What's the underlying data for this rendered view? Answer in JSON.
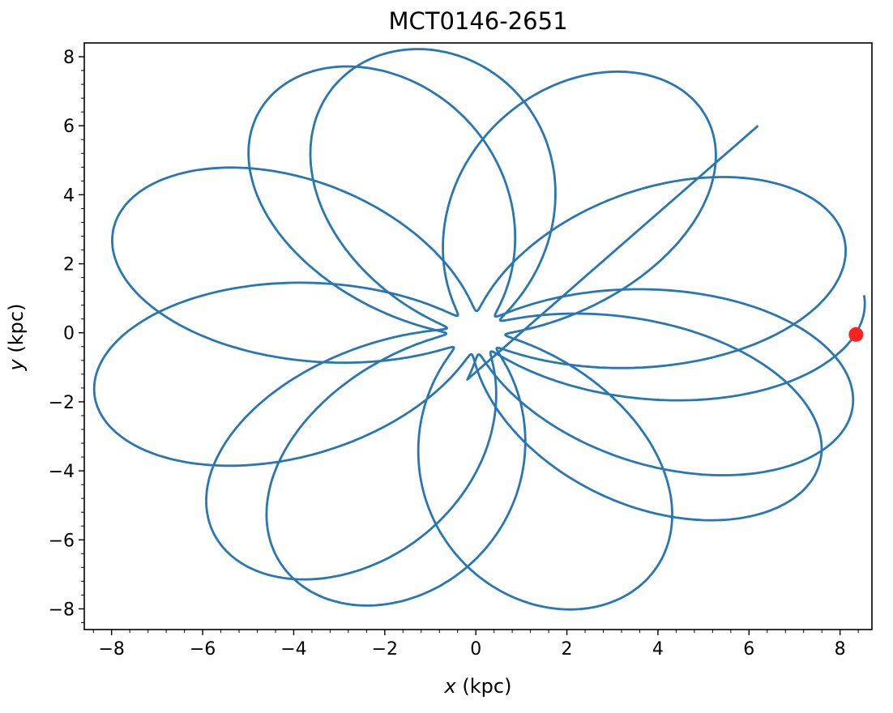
{
  "chart_data": {
    "type": "line",
    "title": "MCT0146-2651",
    "xlabel_var": "x",
    "xlabel_unit": " (kpc)",
    "ylabel_var": "y",
    "ylabel_unit": " (kpc)",
    "xlim": [
      -8.6,
      8.7
    ],
    "ylim": [
      -8.6,
      8.4
    ],
    "xticks": [
      -8,
      -6,
      -4,
      -2,
      0,
      2,
      4,
      6,
      8
    ],
    "yticks": [
      -8,
      -6,
      -4,
      -2,
      0,
      2,
      4,
      6,
      8
    ],
    "xtick_labels": [
      "−8",
      "−6",
      "−4",
      "−2",
      "0",
      "2",
      "4",
      "6",
      "8"
    ],
    "ytick_labels": [
      "−8",
      "−6",
      "−4",
      "−2",
      "0",
      "2",
      "4",
      "6",
      "8"
    ],
    "minor_ticks": true,
    "grid": false,
    "series": [
      {
        "kind": "orbit",
        "color": "#2876b2",
        "rosette": {
          "r_peri": 0.65,
          "r_apo": 8.6,
          "y_flatten": 0.97,
          "apo_angle_step_deg": 133.2,
          "first_apo_angle_deg": 7.5,
          "loops": 11.6,
          "end_point": [
            6.2,
            6.0
          ]
        }
      },
      {
        "kind": "current-position",
        "color": "#ff2020",
        "x": 8.35,
        "y": -0.05
      }
    ]
  }
}
